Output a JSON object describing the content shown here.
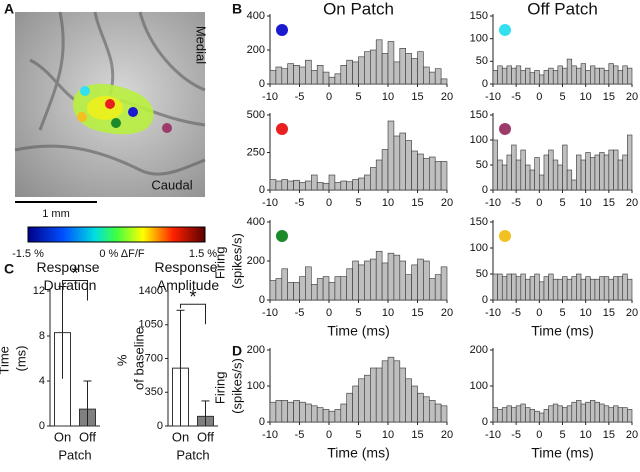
{
  "figure": {
    "panels": [
      "A",
      "B",
      "C",
      "D"
    ]
  },
  "panel_a": {
    "orientation_labels": [
      "Medial",
      "Caudal"
    ],
    "scale_bar": "1 mm",
    "colorbar": {
      "min_label": "-1.5 %",
      "mid_label": "0 % ΔF/F",
      "max_label": "1.5 %"
    }
  },
  "chart_data": [
    {
      "type": "histogram",
      "title": "On Patch",
      "marker_color": "#1a1ad0",
      "color": "#bfbfbf",
      "bins": [
        -10,
        -9,
        -8,
        -7,
        -6,
        -5,
        -4,
        -3,
        -2,
        -1,
        0,
        1,
        2,
        3,
        4,
        5,
        6,
        7,
        8,
        9,
        10,
        11,
        12,
        13,
        14,
        15,
        16,
        17,
        18,
        19,
        20
      ],
      "values": [
        80,
        100,
        90,
        120,
        110,
        100,
        140,
        80,
        110,
        70,
        40,
        60,
        110,
        140,
        130,
        160,
        190,
        200,
        260,
        180,
        250,
        130,
        210,
        180,
        150,
        190,
        100,
        70,
        90,
        30
      ],
      "xlim": [
        -10,
        20
      ],
      "xticks": [
        -10,
        -5,
        0,
        5,
        10,
        15,
        20
      ],
      "ylim": [
        0,
        400
      ],
      "yticks": [
        0,
        200,
        400
      ]
    },
    {
      "type": "histogram",
      "title": "Off Patch",
      "marker_color": "#33e0f0",
      "color": "#bfbfbf",
      "bins": [
        -10,
        -9,
        -8,
        -7,
        -6,
        -5,
        -4,
        -3,
        -2,
        -1,
        0,
        1,
        2,
        3,
        4,
        5,
        6,
        7,
        8,
        9,
        10,
        11,
        12,
        13,
        14,
        15,
        16,
        17,
        18,
        19,
        20
      ],
      "values": [
        30,
        40,
        35,
        40,
        35,
        40,
        30,
        35,
        25,
        30,
        20,
        30,
        35,
        30,
        40,
        35,
        55,
        40,
        35,
        45,
        30,
        40,
        35,
        35,
        30,
        45,
        40,
        30,
        40,
        35
      ],
      "xlim": [
        -10,
        20
      ],
      "xticks": [
        -10,
        -5,
        0,
        5,
        10,
        15,
        20
      ],
      "ylim": [
        0,
        150
      ],
      "yticks": [
        0,
        50,
        100,
        150
      ]
    },
    {
      "type": "histogram",
      "marker_color": "#e82020",
      "color": "#bfbfbf",
      "bins": [
        -10,
        -9,
        -8,
        -7,
        -6,
        -5,
        -4,
        -3,
        -2,
        -1,
        0,
        1,
        2,
        3,
        4,
        5,
        6,
        7,
        8,
        9,
        10,
        11,
        12,
        13,
        14,
        15,
        16,
        17,
        18,
        19,
        20
      ],
      "values": [
        70,
        60,
        70,
        60,
        65,
        50,
        60,
        100,
        50,
        45,
        100,
        50,
        60,
        55,
        70,
        80,
        100,
        150,
        200,
        270,
        460,
        360,
        380,
        330,
        260,
        240,
        210,
        220,
        190,
        190
      ],
      "xlim": [
        -10,
        20
      ],
      "xticks": [
        -10,
        -5,
        0,
        5,
        10,
        15,
        20
      ],
      "ylim": [
        0,
        500
      ],
      "yticks": [
        0,
        250,
        500
      ]
    },
    {
      "type": "histogram",
      "marker_color": "#9c3a6a",
      "color": "#bfbfbf",
      "bins": [
        -10,
        -9,
        -8,
        -7,
        -6,
        -5,
        -4,
        -3,
        -2,
        -1,
        0,
        1,
        2,
        3,
        4,
        5,
        6,
        7,
        8,
        9,
        10,
        11,
        12,
        13,
        14,
        15,
        16,
        17,
        18,
        19,
        20
      ],
      "values": [
        100,
        60,
        50,
        70,
        90,
        60,
        80,
        50,
        40,
        65,
        30,
        70,
        80,
        60,
        50,
        90,
        40,
        20,
        70,
        60,
        75,
        65,
        70,
        75,
        70,
        80,
        80,
        60,
        70,
        110
      ],
      "xlim": [
        -10,
        20
      ],
      "xticks": [
        -10,
        -5,
        0,
        5,
        10,
        15,
        20
      ],
      "ylim": [
        0,
        150
      ],
      "yticks": [
        0,
        50,
        100,
        150
      ]
    },
    {
      "type": "histogram",
      "xlabel": "Time (ms)",
      "ylabel": "Firing (spikes/s)",
      "marker_color": "#1a8a2a",
      "color": "#bfbfbf",
      "bins": [
        -10,
        -9,
        -8,
        -7,
        -6,
        -5,
        -4,
        -3,
        -2,
        -1,
        0,
        1,
        2,
        3,
        4,
        5,
        6,
        7,
        8,
        9,
        10,
        11,
        12,
        13,
        14,
        15,
        16,
        17,
        18,
        19,
        20
      ],
      "values": [
        100,
        110,
        160,
        90,
        90,
        120,
        170,
        80,
        110,
        120,
        90,
        120,
        120,
        160,
        200,
        180,
        200,
        210,
        250,
        190,
        240,
        230,
        200,
        130,
        180,
        210,
        200,
        110,
        130,
        170
      ],
      "xlim": [
        -10,
        20
      ],
      "xticks": [
        -10,
        -5,
        0,
        5,
        10,
        15,
        20
      ],
      "ylim": [
        0,
        400
      ],
      "yticks": [
        0,
        200,
        400
      ]
    },
    {
      "type": "histogram",
      "xlabel": "Time (ms)",
      "marker_color": "#f2c020",
      "color": "#bfbfbf",
      "bins": [
        -10,
        -9,
        -8,
        -7,
        -6,
        -5,
        -4,
        -3,
        -2,
        -1,
        0,
        1,
        2,
        3,
        4,
        5,
        6,
        7,
        8,
        9,
        10,
        11,
        12,
        13,
        14,
        15,
        16,
        17,
        18,
        19,
        20
      ],
      "values": [
        50,
        50,
        45,
        50,
        50,
        45,
        50,
        40,
        45,
        50,
        35,
        45,
        50,
        40,
        40,
        45,
        40,
        45,
        50,
        40,
        45,
        40,
        40,
        45,
        45,
        40,
        45,
        45,
        50,
        40
      ],
      "xlim": [
        -10,
        20
      ],
      "xticks": [
        -10,
        -5,
        0,
        5,
        10,
        15,
        20
      ],
      "ylim": [
        0,
        150
      ],
      "yticks": [
        0,
        50,
        100,
        150
      ]
    },
    {
      "type": "histogram",
      "xlabel": "Time (ms)",
      "ylabel": "Firing (spikes/s)",
      "color": "#bfbfbf",
      "bins": [
        -10,
        -9,
        -8,
        -7,
        -6,
        -5,
        -4,
        -3,
        -2,
        -1,
        0,
        1,
        2,
        3,
        4,
        5,
        6,
        7,
        8,
        9,
        10,
        11,
        12,
        13,
        14,
        15,
        16,
        17,
        18,
        19,
        20
      ],
      "values": [
        55,
        60,
        60,
        55,
        60,
        55,
        50,
        45,
        40,
        35,
        30,
        35,
        50,
        80,
        100,
        120,
        130,
        150,
        150,
        170,
        180,
        170,
        150,
        120,
        100,
        80,
        70,
        60,
        50,
        45
      ],
      "xlim": [
        -10,
        20
      ],
      "xticks": [
        -10,
        -5,
        0,
        5,
        10,
        15,
        20
      ],
      "ylim": [
        0,
        200
      ],
      "yticks": [
        0,
        100,
        200
      ]
    },
    {
      "type": "histogram",
      "xlabel": "Time (ms)",
      "color": "#bfbfbf",
      "bins": [
        -10,
        -9,
        -8,
        -7,
        -6,
        -5,
        -4,
        -3,
        -2,
        -1,
        0,
        1,
        2,
        3,
        4,
        5,
        6,
        7,
        8,
        9,
        10,
        11,
        12,
        13,
        14,
        15,
        16,
        17,
        18,
        19,
        20
      ],
      "values": [
        40,
        35,
        40,
        45,
        40,
        45,
        50,
        40,
        35,
        30,
        25,
        35,
        45,
        50,
        45,
        40,
        45,
        55,
        60,
        50,
        55,
        60,
        55,
        50,
        45,
        40,
        45,
        40,
        40,
        35
      ],
      "xlim": [
        -10,
        20
      ],
      "xticks": [
        -10,
        -5,
        0,
        5,
        10,
        15,
        20
      ],
      "ylim": [
        0,
        200
      ],
      "yticks": [
        0,
        100,
        200
      ]
    },
    {
      "type": "bar",
      "title": "Response Duration",
      "xlabel": "Patch",
      "ylabel": "Time (ms)",
      "categories": [
        "On",
        "Off"
      ],
      "values": [
        8.3,
        1.5
      ],
      "errors": [
        4.1,
        2.5
      ],
      "colors": [
        "#ffffff",
        "#808080"
      ],
      "ylim": [
        0,
        12
      ],
      "yticks": [
        0,
        4,
        8,
        12
      ],
      "annotation": "*"
    },
    {
      "type": "bar",
      "title": "Response Amplitude",
      "xlabel": "Patch",
      "ylabel": "% of baseline",
      "categories": [
        "On",
        "Off"
      ],
      "values": [
        600,
        100
      ],
      "errors": [
        600,
        160
      ],
      "colors": [
        "#ffffff",
        "#808080"
      ],
      "ylim": [
        0,
        1400
      ],
      "yticks": [
        0,
        350,
        700,
        1050,
        1400
      ],
      "annotation": "*"
    }
  ]
}
